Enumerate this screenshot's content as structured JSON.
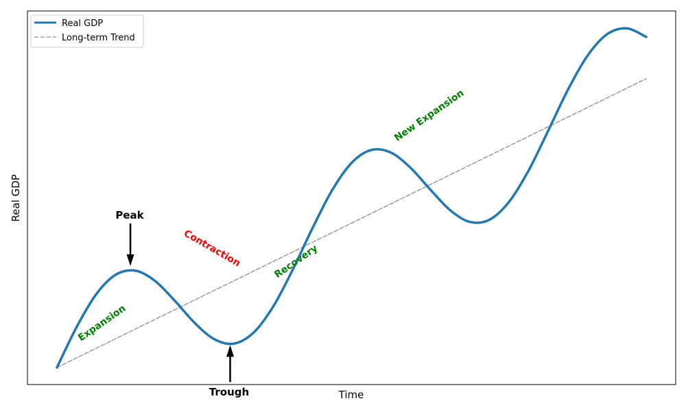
{
  "chart_data": {
    "type": "line",
    "title": "",
    "xlabel": "Time",
    "ylabel": "Real GDP",
    "xlim": [
      -0.75,
      15.75
    ],
    "ylim": [
      97.35,
      155.55
    ],
    "grid": false,
    "ticks_visible": false,
    "legend": {
      "placement": "top-left",
      "entries": [
        "Real GDP",
        "Long-term Trend"
      ]
    },
    "x": [
      0,
      0.5,
      1,
      1.5,
      2,
      2.5,
      3,
      3.5,
      4,
      4.5,
      5,
      5.5,
      6,
      6.5,
      7,
      7.5,
      8,
      8.5,
      9,
      9.5,
      10,
      10.5,
      11,
      11.5,
      12,
      12.5,
      13,
      13.5,
      14,
      14.5,
      15
    ],
    "series": [
      {
        "name": "Real GDP",
        "color": "#1f77b4",
        "style": "solid",
        "values": [
          100,
          106.29,
          111.41,
          114.47,
          115.09,
          113.48,
          110.41,
          106.99,
          104.43,
          103.72,
          105.41,
          109.45,
          115.21,
          121.65,
          127.57,
          131.88,
          133.89,
          133.49,
          131.12,
          127.75,
          124.56,
          122.7,
          123.0,
          125.75,
          130.63,
          136.84,
          143.2,
          148.54,
          151.91,
          152.85,
          151.5
        ]
      },
      {
        "name": "Long-term Trend",
        "color": "#a0a0a0",
        "style": "dashed",
        "values": [
          100,
          101.5,
          103,
          104.5,
          106,
          107.5,
          109,
          110.5,
          112,
          113.5,
          115,
          116.5,
          118,
          119.5,
          121,
          122.5,
          124,
          125.5,
          127,
          128.5,
          130,
          131.5,
          133,
          134.5,
          136,
          137.5,
          139,
          140.5,
          142,
          143.5,
          145
        ]
      }
    ],
    "annotations": [
      {
        "text": "Peak",
        "color": "#000000",
        "kind": "arrow-down",
        "target": [
          1.87,
          115.6
        ]
      },
      {
        "text": "Trough",
        "color": "#000000",
        "kind": "arrow-up",
        "target": [
          4.41,
          103.7
        ]
      },
      {
        "text": "Expansion",
        "color": "#008000"
      },
      {
        "text": "Contraction",
        "color": "#ff0000"
      },
      {
        "text": "Recovery",
        "color": "#008000"
      },
      {
        "text": "New Expansion",
        "color": "#008000"
      }
    ]
  }
}
